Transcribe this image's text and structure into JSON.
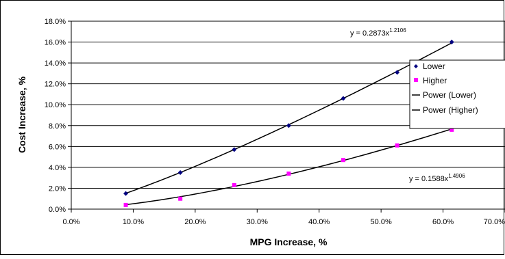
{
  "chart_data": {
    "type": "scatter",
    "xlabel": "MPG Increase, %",
    "ylabel": "Cost Increase, %",
    "xlim": [
      0.0,
      0.7
    ],
    "ylim": [
      0.0,
      0.18
    ],
    "x_ticks": [
      "0.0%",
      "10.0%",
      "20.0%",
      "30.0%",
      "40.0%",
      "50.0%",
      "60.0%",
      "70.0%"
    ],
    "y_ticks": [
      "0.0%",
      "2.0%",
      "4.0%",
      "6.0%",
      "8.0%",
      "10.0%",
      "12.0%",
      "14.0%",
      "16.0%",
      "18.0%"
    ],
    "grid": "horizontal",
    "legend_position": "right",
    "series": [
      {
        "name": "Lower",
        "marker": "diamond",
        "color": "#000080",
        "x": [
          0.088,
          0.176,
          0.263,
          0.351,
          0.439,
          0.526,
          0.614
        ],
        "y": [
          0.015,
          0.035,
          0.057,
          0.08,
          0.106,
          0.131,
          0.16
        ]
      },
      {
        "name": "Higher",
        "marker": "square",
        "color": "#ff00ff",
        "x": [
          0.088,
          0.176,
          0.263,
          0.351,
          0.439,
          0.526,
          0.614
        ],
        "y": [
          0.004,
          0.01,
          0.023,
          0.034,
          0.047,
          0.061,
          0.076
        ]
      }
    ],
    "trendlines": [
      {
        "name": "Power (Lower)",
        "type": "power",
        "coef": 0.2873,
        "exponent": 1.2106,
        "x_range": [
          0.088,
          0.614
        ],
        "equation_base": "y = 0.2873x",
        "equation_exp": "1.2106"
      },
      {
        "name": "Power (Higher)",
        "type": "power",
        "coef": 0.1588,
        "exponent": 1.4906,
        "x_range": [
          0.088,
          0.614
        ],
        "equation_base": "y = 0.1588x",
        "equation_exp": "1.4906"
      }
    ]
  }
}
